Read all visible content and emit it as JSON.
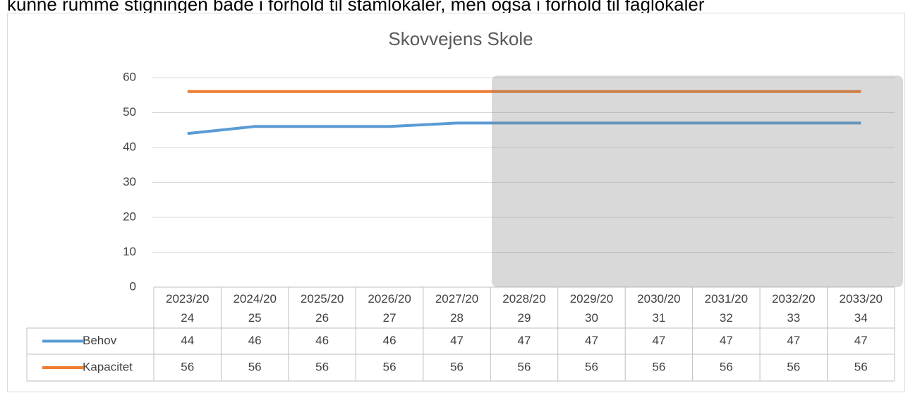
{
  "page_text": "kunne rumme stigningen både i forhold til stamlokaler, men også i forhold til faglokaler",
  "chart_data": {
    "type": "line",
    "title": "Skovvejens Skole",
    "categories": [
      "2023/2024",
      "2024/2025",
      "2025/2026",
      "2026/2027",
      "2027/2028",
      "2028/2029",
      "2029/2030",
      "2030/2031",
      "2031/2032",
      "2032/2033",
      "2033/2034"
    ],
    "series": [
      {
        "name": "Behov",
        "color": "#5b9bd5",
        "values": [
          44,
          46,
          46,
          46,
          47,
          47,
          47,
          47,
          47,
          47,
          47
        ]
      },
      {
        "name": "Kapacitet",
        "color": "#ed7d31",
        "values": [
          56,
          56,
          56,
          56,
          56,
          56,
          56,
          56,
          56,
          56,
          56
        ]
      }
    ],
    "ylim": [
      0,
      60
    ],
    "yticks": [
      0,
      10,
      20,
      30,
      40,
      50,
      60
    ],
    "grid": true,
    "data_table": true
  }
}
